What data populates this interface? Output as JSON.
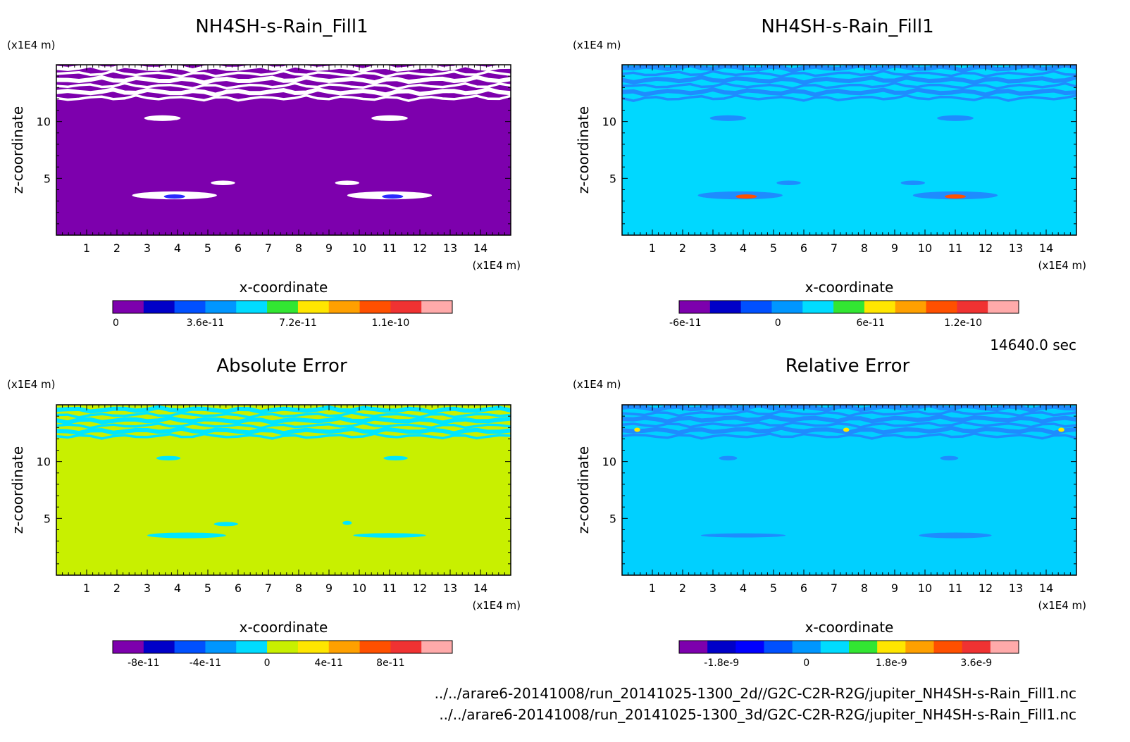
{
  "figure": {
    "time_label": "14640.0 sec",
    "file_paths": [
      "../../arare6-20141008/run_20141025-1300_2d//G2C-C2R-R2G/jupiter_NH4SH-s-Rain_Fill1.nc",
      "../../arare6-20141008/run_20141025-1300_3d/G2C-C2R-R2G/jupiter_NH4SH-s-Rain_Fill1.nc"
    ]
  },
  "chart_data": [
    {
      "type": "heatmap",
      "title": "NH4SH-s-Rain_Fill1",
      "xlabel": "x-coordinate",
      "ylabel": "z-coordinate",
      "x_unit": "(x1E4 m)",
      "y_unit": "(x1E4 m)",
      "xlim": [
        0,
        15
      ],
      "ylim": [
        0,
        15
      ],
      "x_ticks": [
        "1",
        "2",
        "3",
        "4",
        "5",
        "6",
        "7",
        "8",
        "9",
        "10",
        "11",
        "12",
        "13",
        "14"
      ],
      "y_ticks": [
        "5",
        "10"
      ],
      "background_color": "#7d00ad",
      "features": [
        {
          "kind": "band",
          "z_range": [
            11.8,
            15.0
          ],
          "color": "#ffffff",
          "pattern": "streaks"
        },
        {
          "kind": "blob",
          "x": 3.5,
          "z": 10.3,
          "rx": 0.6,
          "rz": 0.25,
          "color": "#ffffff"
        },
        {
          "kind": "blob",
          "x": 11.0,
          "z": 10.3,
          "rx": 0.6,
          "rz": 0.25,
          "color": "#ffffff"
        },
        {
          "kind": "blob",
          "x": 5.5,
          "z": 4.6,
          "rx": 0.4,
          "rz": 0.2,
          "color": "#ffffff"
        },
        {
          "kind": "blob",
          "x": 9.6,
          "z": 4.6,
          "rx": 0.4,
          "rz": 0.2,
          "color": "#ffffff"
        },
        {
          "kind": "blob",
          "x": 3.9,
          "z": 3.5,
          "rx": 1.4,
          "rz": 0.35,
          "color": "#ffffff"
        },
        {
          "kind": "blob",
          "x": 11.0,
          "z": 3.5,
          "rx": 1.4,
          "rz": 0.35,
          "color": "#ffffff"
        },
        {
          "kind": "blob",
          "x": 3.9,
          "z": 3.4,
          "rx": 0.35,
          "rz": 0.12,
          "color": "#2a2aff"
        },
        {
          "kind": "blob",
          "x": 11.1,
          "z": 3.4,
          "rx": 0.35,
          "rz": 0.12,
          "color": "#2a2aff"
        }
      ],
      "colorbar": {
        "colors": [
          "#7d00ad",
          "#0000c8",
          "#0050ff",
          "#0096ff",
          "#00dcff",
          "#32e632",
          "#ffe600",
          "#ffa000",
          "#ff5000",
          "#f03232",
          "#ffaaaa"
        ],
        "labels": [
          "0",
          "3.6e-11",
          "7.2e-11",
          "1.1e-10"
        ]
      }
    },
    {
      "type": "heatmap",
      "title": "NH4SH-s-Rain_Fill1",
      "xlabel": "x-coordinate",
      "ylabel": "z-coordinate",
      "x_unit": "(x1E4 m)",
      "y_unit": "(x1E4 m)",
      "xlim": [
        0,
        15
      ],
      "ylim": [
        0,
        15
      ],
      "x_ticks": [
        "1",
        "2",
        "3",
        "4",
        "5",
        "6",
        "7",
        "8",
        "9",
        "10",
        "11",
        "12",
        "13",
        "14"
      ],
      "y_ticks": [
        "5",
        "10"
      ],
      "background_color": "#00d8ff",
      "features": [
        {
          "kind": "band",
          "z_range": [
            11.8,
            15.0
          ],
          "color": "#1e8cff",
          "pattern": "streaks"
        },
        {
          "kind": "blob",
          "x": 3.5,
          "z": 10.3,
          "rx": 0.6,
          "rz": 0.25,
          "color": "#1e8cff"
        },
        {
          "kind": "blob",
          "x": 11.0,
          "z": 10.3,
          "rx": 0.6,
          "rz": 0.25,
          "color": "#1e8cff"
        },
        {
          "kind": "blob",
          "x": 5.5,
          "z": 4.6,
          "rx": 0.4,
          "rz": 0.2,
          "color": "#1e8cff"
        },
        {
          "kind": "blob",
          "x": 9.6,
          "z": 4.6,
          "rx": 0.4,
          "rz": 0.2,
          "color": "#1e8cff"
        },
        {
          "kind": "blob",
          "x": 3.9,
          "z": 3.5,
          "rx": 1.4,
          "rz": 0.35,
          "color": "#1e8cff"
        },
        {
          "kind": "blob",
          "x": 11.0,
          "z": 3.5,
          "rx": 1.4,
          "rz": 0.35,
          "color": "#1e8cff"
        },
        {
          "kind": "blob",
          "x": 4.1,
          "z": 3.4,
          "rx": 0.35,
          "rz": 0.12,
          "color": "#ff5000"
        },
        {
          "kind": "blob",
          "x": 11.0,
          "z": 3.4,
          "rx": 0.35,
          "rz": 0.12,
          "color": "#ff5000"
        }
      ],
      "colorbar": {
        "colors": [
          "#7d00ad",
          "#0000c8",
          "#0050ff",
          "#0096ff",
          "#00dcff",
          "#32e632",
          "#ffe600",
          "#ffa000",
          "#ff5000",
          "#f03232",
          "#ffaaaa"
        ],
        "labels": [
          "-6e-11",
          "0",
          "6e-11",
          "1.2e-10"
        ]
      }
    },
    {
      "type": "heatmap",
      "title": "Absolute Error",
      "xlabel": "x-coordinate",
      "ylabel": "z-coordinate",
      "x_unit": "(x1E4 m)",
      "y_unit": "(x1E4 m)",
      "xlim": [
        0,
        15
      ],
      "ylim": [
        0,
        15
      ],
      "x_ticks": [
        "1",
        "2",
        "3",
        "4",
        "5",
        "6",
        "7",
        "8",
        "9",
        "10",
        "11",
        "12",
        "13",
        "14"
      ],
      "y_ticks": [
        "5",
        "10"
      ],
      "background_color": "#c8f000",
      "features": [
        {
          "kind": "band",
          "z_range": [
            12.0,
            14.8
          ],
          "color": "#00e6ff",
          "pattern": "streaks"
        },
        {
          "kind": "blob",
          "x": 3.7,
          "z": 10.3,
          "rx": 0.4,
          "rz": 0.2,
          "color": "#00e6ff"
        },
        {
          "kind": "blob",
          "x": 11.2,
          "z": 10.3,
          "rx": 0.4,
          "rz": 0.2,
          "color": "#00e6ff"
        },
        {
          "kind": "blob",
          "x": 4.3,
          "z": 3.5,
          "rx": 1.3,
          "rz": 0.25,
          "color": "#00e6ff"
        },
        {
          "kind": "blob",
          "x": 11.0,
          "z": 3.5,
          "rx": 1.2,
          "rz": 0.2,
          "color": "#00e6ff"
        },
        {
          "kind": "blob",
          "x": 5.6,
          "z": 4.5,
          "rx": 0.4,
          "rz": 0.12,
          "color": "#00e6ff"
        },
        {
          "kind": "blob",
          "x": 9.6,
          "z": 4.6,
          "rx": 0.15,
          "rz": 0.12,
          "color": "#00e6ff"
        }
      ],
      "colorbar": {
        "colors": [
          "#7d00ad",
          "#0000c8",
          "#0050ff",
          "#0096ff",
          "#00dcff",
          "#c8f000",
          "#ffe600",
          "#ffa000",
          "#ff5000",
          "#f03232",
          "#ffaaaa"
        ],
        "labels": [
          "-8e-11",
          "-4e-11",
          "0",
          "4e-11",
          "8e-11"
        ]
      }
    },
    {
      "type": "heatmap",
      "title": "Relative Error",
      "xlabel": "x-coordinate",
      "ylabel": "z-coordinate",
      "x_unit": "(x1E4 m)",
      "y_unit": "(x1E4 m)",
      "xlim": [
        0,
        15
      ],
      "ylim": [
        0,
        15
      ],
      "x_ticks": [
        "1",
        "2",
        "3",
        "4",
        "5",
        "6",
        "7",
        "8",
        "9",
        "10",
        "11",
        "12",
        "13",
        "14"
      ],
      "y_ticks": [
        "5",
        "10"
      ],
      "background_color": "#00d0ff",
      "features": [
        {
          "kind": "band",
          "z_range": [
            12.0,
            15.0
          ],
          "color": "#1e8cff",
          "pattern": "streaks"
        },
        {
          "kind": "blob",
          "x": 3.5,
          "z": 10.3,
          "rx": 0.3,
          "rz": 0.2,
          "color": "#1e8cff"
        },
        {
          "kind": "blob",
          "x": 10.8,
          "z": 10.3,
          "rx": 0.3,
          "rz": 0.2,
          "color": "#1e8cff"
        },
        {
          "kind": "blob",
          "x": 4.0,
          "z": 3.5,
          "rx": 1.4,
          "rz": 0.15,
          "color": "#1e8cff"
        },
        {
          "kind": "blob",
          "x": 11.0,
          "z": 3.5,
          "rx": 1.2,
          "rz": 0.25,
          "color": "#1e8cff"
        },
        {
          "kind": "blob",
          "x": 0.5,
          "z": 12.8,
          "rx": 0.1,
          "rz": 0.1,
          "color": "#ffe600"
        },
        {
          "kind": "blob",
          "x": 7.4,
          "z": 12.8,
          "rx": 0.1,
          "rz": 0.1,
          "color": "#ffe600"
        },
        {
          "kind": "blob",
          "x": 14.5,
          "z": 12.8,
          "rx": 0.1,
          "rz": 0.1,
          "color": "#ffe600"
        }
      ],
      "colorbar": {
        "colors": [
          "#7d00ad",
          "#0000c8",
          "#0000ff",
          "#0050ff",
          "#0096ff",
          "#00dcff",
          "#32e632",
          "#ffe600",
          "#ffa000",
          "#ff5000",
          "#f03232",
          "#ffaaaa"
        ],
        "labels": [
          "-1.8e-9",
          "0",
          "1.8e-9",
          "3.6e-9"
        ]
      }
    }
  ]
}
